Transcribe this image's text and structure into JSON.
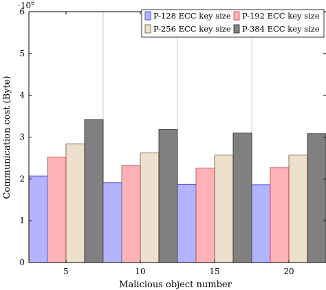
{
  "chart_data": {
    "type": "bar",
    "title": "",
    "xlabel": "Malicious object number",
    "ylabel": "Communication cost (Byte)",
    "y_scale_label": "·10",
    "y_scale_exponent": "6",
    "categories": [
      "5",
      "10",
      "15",
      "20"
    ],
    "series": [
      {
        "name": "P-128 ECC key size",
        "values": [
          2.07,
          1.91,
          1.87,
          1.86
        ],
        "color": "#b3b3ff",
        "stroke": "#3333cc"
      },
      {
        "name": "P-192 ECC key size",
        "values": [
          2.52,
          2.32,
          2.26,
          2.27
        ],
        "color": "#ffb3b8",
        "stroke": "#cc3344"
      },
      {
        "name": "P-256 ECC key size",
        "values": [
          2.84,
          2.62,
          2.57,
          2.57
        ],
        "color": "#ede0cc",
        "stroke": "#6b4f2f"
      },
      {
        "name": "P-384 ECC key size",
        "values": [
          3.42,
          3.18,
          3.1,
          3.08
        ],
        "color": "#808080",
        "stroke": "#222222"
      }
    ],
    "ylim": [
      0,
      6
    ],
    "yticks": [
      "0",
      "1",
      "2",
      "3",
      "4",
      "5",
      "6"
    ],
    "grid": "vertical",
    "legend_position": "top-right"
  }
}
